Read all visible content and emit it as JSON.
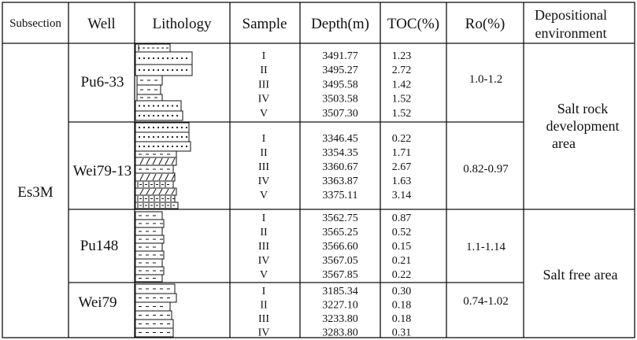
{
  "headers": {
    "subsection": "Subsection",
    "well": "Well",
    "lithology": "Lithology",
    "sample": "Sample",
    "depth": "Depth(m)",
    "toc": "TOC(%)",
    "ro": "Ro(%)",
    "environment": [
      "Depositional",
      "environment"
    ]
  },
  "subsection": "Es3M",
  "wells": [
    {
      "name": "Pu6-33",
      "ro": "1.0-1.2",
      "samples": [
        {
          "id": "I",
          "depth": "3491.77",
          "toc": "1.23"
        },
        {
          "id": "II",
          "depth": "3495.27",
          "toc": "2.72"
        },
        {
          "id": "III",
          "depth": "3495.58",
          "toc": "1.42"
        },
        {
          "id": "IV",
          "depth": "3503.58",
          "toc": "1.52"
        },
        {
          "id": "V",
          "depth": "3507.30",
          "toc": "1.52"
        }
      ]
    },
    {
      "name": "Wei79-13",
      "ro": "0.82-0.97",
      "samples": [
        {
          "id": "I",
          "depth": "3346.45",
          "toc": "0.22"
        },
        {
          "id": "II",
          "depth": "3354.35",
          "toc": "1.71"
        },
        {
          "id": "III",
          "depth": "3360.67",
          "toc": "2.67"
        },
        {
          "id": "IV",
          "depth": "3363.87",
          "toc": "1.63"
        },
        {
          "id": "V",
          "depth": "3375.11",
          "toc": "3.14"
        }
      ]
    },
    {
      "name": "Pu148",
      "ro": "1.1-1.14",
      "samples": [
        {
          "id": "I",
          "depth": "3562.75",
          "toc": "0.87"
        },
        {
          "id": "II",
          "depth": "3565.25",
          "toc": "0.52"
        },
        {
          "id": "III",
          "depth": "3566.60",
          "toc": "0.15"
        },
        {
          "id": "IV",
          "depth": "3567.05",
          "toc": "0.21"
        },
        {
          "id": "V",
          "depth": "3567.85",
          "toc": "0.22"
        }
      ]
    },
    {
      "name": "Wei79",
      "ro": "0.74-1.02",
      "samples": [
        {
          "id": "I",
          "depth": "3185.34",
          "toc": "0.30"
        },
        {
          "id": "II",
          "depth": "3227.10",
          "toc": "0.18"
        },
        {
          "id": "III",
          "depth": "3233.80",
          "toc": "0.18"
        },
        {
          "id": "IV",
          "depth": "3283.80",
          "toc": "0.31"
        }
      ]
    }
  ],
  "environments": [
    {
      "lines": [
        "Salt rock",
        "development",
        "area"
      ]
    },
    {
      "lines": [
        "Salt free area"
      ]
    }
  ]
}
